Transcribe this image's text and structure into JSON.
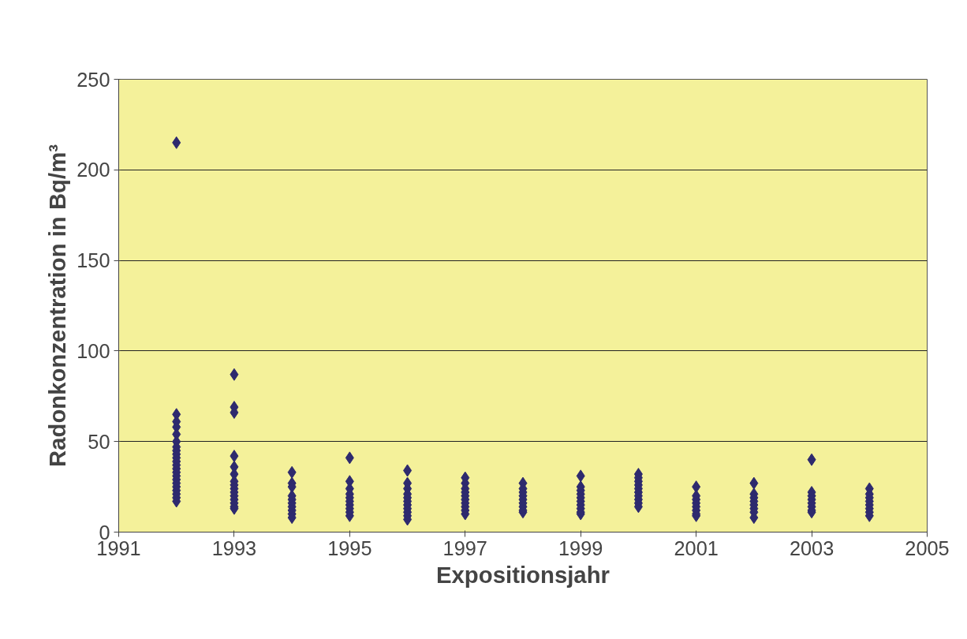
{
  "chart_data": {
    "type": "scatter",
    "xlabel": "Expositionsjahr",
    "ylabel": "Radonkonzentration in Bq/m³",
    "xlim": [
      1991,
      2005
    ],
    "xticks": [
      1991,
      1993,
      1995,
      1997,
      1999,
      2001,
      2003,
      2005
    ],
    "ylim": [
      0,
      250
    ],
    "yticks": [
      0,
      50,
      100,
      150,
      200,
      250
    ],
    "grid": "y",
    "marker": "diamond",
    "series": [
      {
        "color": "#2e2a6e",
        "x": [
          1992,
          1992,
          1992,
          1992,
          1992,
          1992,
          1992,
          1992,
          1992,
          1992,
          1992,
          1992,
          1992,
          1992,
          1992,
          1992,
          1992,
          1992,
          1992,
          1992,
          1992,
          1992,
          1993,
          1993,
          1993,
          1993,
          1993,
          1993,
          1993,
          1993,
          1993,
          1993,
          1993,
          1993,
          1993,
          1993,
          1993,
          1994,
          1994,
          1994,
          1994,
          1994,
          1994,
          1994,
          1994,
          1994,
          1994,
          1995,
          1995,
          1995,
          1995,
          1995,
          1995,
          1995,
          1995,
          1995,
          1995,
          1996,
          1996,
          1996,
          1996,
          1996,
          1996,
          1996,
          1996,
          1996,
          1996,
          1996,
          1997,
          1997,
          1997,
          1997,
          1997,
          1997,
          1997,
          1997,
          1997,
          1997,
          1998,
          1998,
          1998,
          1998,
          1998,
          1998,
          1998,
          1998,
          1998,
          1999,
          1999,
          1999,
          1999,
          1999,
          1999,
          1999,
          1999,
          1999,
          1999,
          2000,
          2000,
          2000,
          2000,
          2000,
          2000,
          2000,
          2000,
          2000,
          2000,
          2001,
          2001,
          2001,
          2001,
          2001,
          2001,
          2001,
          2001,
          2002,
          2002,
          2002,
          2002,
          2002,
          2002,
          2002,
          2002,
          2003,
          2003,
          2003,
          2003,
          2003,
          2003,
          2003,
          2003,
          2004,
          2004,
          2004,
          2004,
          2004,
          2004,
          2004,
          2004
        ],
        "values": [
          215,
          65,
          61,
          58,
          54,
          50,
          47,
          45,
          43,
          41,
          39,
          37,
          35,
          33,
          31,
          29,
          27,
          25,
          23,
          21,
          19,
          17,
          87,
          69,
          66,
          42,
          36,
          32,
          28,
          26,
          24,
          22,
          20,
          18,
          16,
          14,
          13,
          33,
          27,
          25,
          20,
          18,
          16,
          14,
          12,
          10,
          8,
          41,
          28,
          24,
          21,
          19,
          17,
          15,
          13,
          11,
          9,
          34,
          27,
          24,
          21,
          19,
          17,
          15,
          13,
          11,
          9,
          7,
          30,
          27,
          24,
          22,
          20,
          18,
          16,
          14,
          12,
          10,
          27,
          24,
          22,
          20,
          18,
          16,
          14,
          12,
          11,
          31,
          25,
          23,
          21,
          19,
          17,
          15,
          13,
          11,
          10,
          32,
          30,
          28,
          26,
          24,
          22,
          20,
          18,
          16,
          14,
          25,
          20,
          18,
          16,
          14,
          12,
          10,
          9,
          27,
          21,
          19,
          17,
          15,
          13,
          11,
          8,
          40,
          22,
          20,
          18,
          16,
          14,
          12,
          11,
          24,
          21,
          19,
          17,
          15,
          13,
          11,
          9
        ]
      }
    ]
  }
}
